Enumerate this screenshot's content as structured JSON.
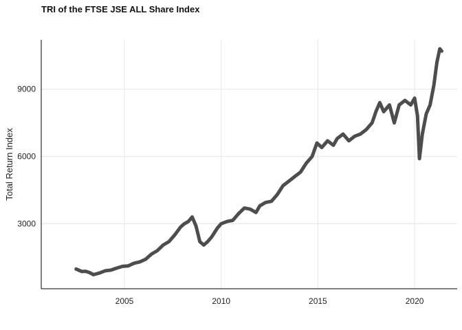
{
  "chart_data": {
    "type": "line",
    "title": "TRI of the FTSE JSE ALL Share Index",
    "xlabel": "",
    "ylabel": "Total Return Index",
    "xlim": [
      2000.7,
      2022.2
    ],
    "ylim": [
      100,
      11200
    ],
    "x_ticks": [
      {
        "value": 2005,
        "label": "2005"
      },
      {
        "value": 2010,
        "label": "2010"
      },
      {
        "value": 2015,
        "label": "2015"
      },
      {
        "value": 2020,
        "label": "2020"
      }
    ],
    "y_ticks": [
      {
        "value": 3000,
        "label": "3000"
      },
      {
        "value": 6000,
        "label": "6000"
      },
      {
        "value": 9000,
        "label": "9000"
      }
    ],
    "grid": true,
    "legend": "none",
    "series": [
      {
        "color": "#4d4d4d",
        "points": [
          [
            2002.5,
            980
          ],
          [
            2002.8,
            870
          ],
          [
            2003.0,
            880
          ],
          [
            2003.2,
            820
          ],
          [
            2003.4,
            730
          ],
          [
            2003.7,
            800
          ],
          [
            2004.0,
            900
          ],
          [
            2004.3,
            930
          ],
          [
            2004.6,
            1020
          ],
          [
            2004.9,
            1100
          ],
          [
            2005.2,
            1120
          ],
          [
            2005.5,
            1240
          ],
          [
            2005.8,
            1300
          ],
          [
            2006.1,
            1420
          ],
          [
            2006.4,
            1650
          ],
          [
            2006.7,
            1800
          ],
          [
            2007.0,
            2050
          ],
          [
            2007.3,
            2200
          ],
          [
            2007.6,
            2500
          ],
          [
            2007.9,
            2850
          ],
          [
            2008.1,
            3000
          ],
          [
            2008.3,
            3100
          ],
          [
            2008.5,
            3300
          ],
          [
            2008.7,
            2900
          ],
          [
            2008.9,
            2200
          ],
          [
            2009.1,
            2050
          ],
          [
            2009.3,
            2200
          ],
          [
            2009.5,
            2400
          ],
          [
            2009.8,
            2800
          ],
          [
            2010.0,
            3000
          ],
          [
            2010.3,
            3100
          ],
          [
            2010.6,
            3150
          ],
          [
            2010.9,
            3450
          ],
          [
            2011.2,
            3700
          ],
          [
            2011.5,
            3650
          ],
          [
            2011.8,
            3500
          ],
          [
            2012.0,
            3800
          ],
          [
            2012.3,
            3950
          ],
          [
            2012.6,
            4000
          ],
          [
            2012.9,
            4300
          ],
          [
            2013.2,
            4700
          ],
          [
            2013.5,
            4900
          ],
          [
            2013.8,
            5100
          ],
          [
            2014.1,
            5300
          ],
          [
            2014.4,
            5700
          ],
          [
            2014.7,
            6000
          ],
          [
            2014.95,
            6600
          ],
          [
            2015.2,
            6400
          ],
          [
            2015.5,
            6700
          ],
          [
            2015.8,
            6500
          ],
          [
            2016.0,
            6800
          ],
          [
            2016.3,
            7000
          ],
          [
            2016.6,
            6700
          ],
          [
            2016.9,
            6900
          ],
          [
            2017.2,
            7000
          ],
          [
            2017.5,
            7200
          ],
          [
            2017.8,
            7500
          ],
          [
            2018.0,
            8000
          ],
          [
            2018.2,
            8400
          ],
          [
            2018.4,
            8000
          ],
          [
            2018.7,
            8300
          ],
          [
            2018.95,
            7500
          ],
          [
            2019.2,
            8300
          ],
          [
            2019.5,
            8500
          ],
          [
            2019.8,
            8300
          ],
          [
            2020.0,
            8600
          ],
          [
            2020.15,
            7800
          ],
          [
            2020.25,
            5900
          ],
          [
            2020.4,
            7000
          ],
          [
            2020.6,
            7900
          ],
          [
            2020.8,
            8300
          ],
          [
            2021.0,
            9200
          ],
          [
            2021.15,
            10200
          ],
          [
            2021.3,
            10800
          ],
          [
            2021.4,
            10700
          ]
        ]
      }
    ]
  }
}
